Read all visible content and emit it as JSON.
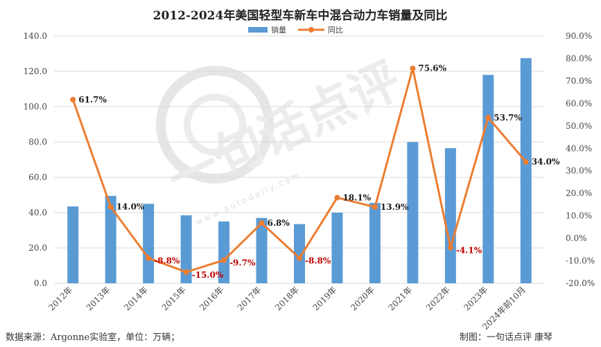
{
  "chart_data": {
    "type": "bar+line",
    "title": "2012-2024年美国轻型车新车中混合动力车销量及同比",
    "categories": [
      "2012年",
      "2013年",
      "2014年",
      "2015年",
      "2016年",
      "2017年",
      "2018年",
      "2019年",
      "2020年",
      "2021年",
      "2022年",
      "2023年",
      "2024年前10月"
    ],
    "series": [
      {
        "name": "销量",
        "type": "bar",
        "axis": "left",
        "color": "#5b9bd5",
        "values": [
          43.5,
          49.5,
          45.0,
          38.5,
          35.0,
          37.0,
          33.5,
          40.0,
          45.5,
          80.0,
          76.5,
          118.0,
          127.5
        ]
      },
      {
        "name": "同比",
        "type": "line",
        "axis": "right",
        "color": "#ed7d31",
        "values": [
          61.7,
          14.0,
          -8.8,
          -15.0,
          -9.7,
          6.8,
          -8.8,
          18.1,
          13.9,
          75.6,
          -4.1,
          53.7,
          34.0
        ],
        "labels": [
          "61.7%",
          "14.0%",
          "-8.8%",
          "-15.0%",
          "-9.7%",
          "6.8%",
          "-8.8%",
          "18.1%",
          "13.9%",
          "75.6%",
          "-4.1%",
          "53.7%",
          "34.0%"
        ]
      }
    ],
    "y_left": {
      "min": 0,
      "max": 140,
      "step": 20,
      "ticks": [
        "0.0",
        "20.0",
        "40.0",
        "60.0",
        "80.0",
        "100.0",
        "120.0",
        "140.0"
      ]
    },
    "y_right": {
      "min": -20,
      "max": 90,
      "step": 10,
      "ticks": [
        "-20.0%",
        "-10.0%",
        "0.0%",
        "10.0%",
        "20.0%",
        "30.0%",
        "40.0%",
        "50.0%",
        "60.0%",
        "70.0%",
        "80.0%",
        "90.0%"
      ]
    },
    "legend_position": "top-center",
    "grid": true,
    "label_colors": {
      "positive": "#1a1a1a",
      "negative": "#c00000"
    },
    "watermark": {
      "text": "一句话点评",
      "url_text": "www.autodaily.com"
    }
  },
  "footer": {
    "source": "数据来源：Argonne实验室，单位：万辆；",
    "credit": "制图：一句话点评  康琴"
  }
}
